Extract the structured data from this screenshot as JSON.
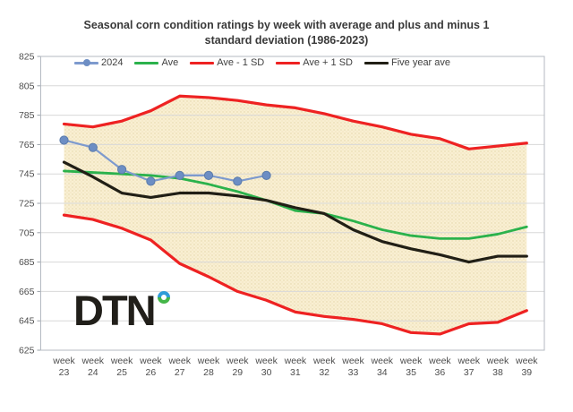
{
  "title": {
    "line1": "Seasonal corn condition ratings by week with average and plus and minus 1",
    "line2": "standard deviation (1986-2023)"
  },
  "logo": {
    "text": "DTN"
  },
  "colors": {
    "series_2024": "#7d9ace",
    "marker_2024": "#6d8ec4",
    "ave_green": "#2bb24c",
    "sd_red": "#ee2222",
    "five_year_black": "#211f15",
    "band_fill": "#f9efd2",
    "band_dot": "#e3d5a8",
    "gridline": "#d8d8d8",
    "plot_border": "#b4bac2",
    "axis_text": "#4d4d4d"
  },
  "chart_data": {
    "type": "line",
    "title": "Seasonal corn condition ratings by week with average and plus and minus 1 standard deviation (1986-2023)",
    "xlabel": "",
    "ylabel": "",
    "ylim": [
      625,
      825
    ],
    "y_ticks": [
      825,
      805,
      785,
      765,
      745,
      725,
      705,
      685,
      665,
      645,
      625
    ],
    "grid": true,
    "legend_position": "top-center",
    "category_prefix": "week",
    "categories": [
      "23",
      "24",
      "25",
      "26",
      "27",
      "28",
      "29",
      "30",
      "31",
      "32",
      "33",
      "34",
      "35",
      "36",
      "37",
      "38",
      "39"
    ],
    "band": {
      "between": [
        "Ave - 1 SD",
        "Ave + 1 SD"
      ]
    },
    "series": [
      {
        "name": "2024",
        "type": "line+marker",
        "values": [
          768,
          763,
          748,
          740,
          744,
          744,
          740,
          744,
          null,
          null,
          null,
          null,
          null,
          null,
          null,
          null,
          null
        ]
      },
      {
        "name": "Ave",
        "type": "line",
        "values": [
          747,
          746,
          745,
          744,
          742,
          738,
          733,
          727,
          720,
          718,
          713,
          707,
          703,
          701,
          701,
          704,
          709
        ]
      },
      {
        "name": "Ave - 1 SD",
        "type": "line",
        "values": [
          717,
          714,
          708,
          700,
          684,
          675,
          665,
          659,
          651,
          648,
          646,
          643,
          637,
          636,
          643,
          644,
          652
        ]
      },
      {
        "name": "Ave + 1 SD",
        "type": "line",
        "values": [
          779,
          777,
          781,
          788,
          798,
          797,
          795,
          792,
          790,
          786,
          781,
          777,
          772,
          769,
          762,
          764,
          766
        ]
      },
      {
        "name": "Five year ave",
        "type": "line",
        "values": [
          753,
          743,
          732,
          729,
          732,
          732,
          730,
          727,
          722,
          718,
          707,
          699,
          694,
          690,
          685,
          689,
          689
        ]
      }
    ]
  }
}
